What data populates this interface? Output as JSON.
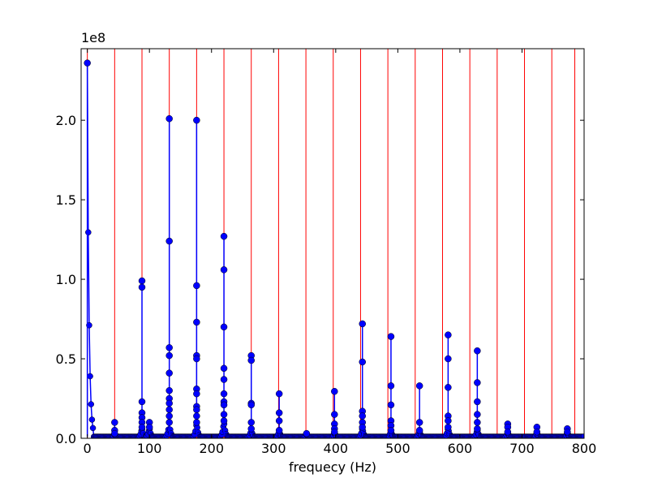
{
  "chart_data": {
    "type": "scatter",
    "title": "",
    "xlabel": "frequecy (Hz)",
    "ylabel": "",
    "y_offset_label": "1e8",
    "xlim": [
      -10,
      800
    ],
    "ylim": [
      0,
      245000000.0
    ],
    "x_ticks": [
      0,
      100,
      200,
      300,
      400,
      500,
      600,
      700,
      800
    ],
    "x_tick_labels": [
      "0",
      "100",
      "200",
      "300",
      "400",
      "500",
      "600",
      "700",
      "800"
    ],
    "y_ticks": [
      0,
      50000000.0,
      100000000.0,
      150000000.0,
      200000000.0
    ],
    "y_tick_labels": [
      "0.0",
      "0.5",
      "1.0",
      "1.5",
      "2.0"
    ],
    "grid": false,
    "colors": {
      "series": "#0000ff",
      "marker_edge": "#000000",
      "harmonic_line": "#ff0000"
    },
    "harmonic_lines_x": [
      0,
      44,
      88,
      132,
      176,
      220,
      264,
      308,
      352,
      396,
      440,
      484,
      528,
      572,
      616,
      660,
      704,
      748,
      785
    ],
    "peaks": [
      {
        "x": 0,
        "values": [
          236000000.0
        ]
      },
      {
        "x": 44,
        "values": [
          10000000.0,
          5000000.0,
          3000000.0
        ]
      },
      {
        "x": 88,
        "values": [
          99000000.0,
          95000000.0,
          23000000.0,
          16000000.0,
          13000000.0,
          10000000.0,
          7000000.0
        ]
      },
      {
        "x": 100,
        "values": [
          10000000.0,
          7000000.0
        ]
      },
      {
        "x": 132,
        "values": [
          201000000.0,
          124000000.0,
          57000000.0,
          52000000.0,
          41000000.0,
          30000000.0,
          25000000.0,
          22000000.0,
          18000000.0,
          14000000.0,
          10000000.0
        ]
      },
      {
        "x": 176,
        "values": [
          200000000.0,
          96000000.0,
          73000000.0,
          52000000.0,
          50000000.0,
          31000000.0,
          28000000.0,
          20000000.0,
          18000000.0,
          14000000.0,
          10000000.0
        ]
      },
      {
        "x": 220,
        "values": [
          127000000.0,
          106000000.0,
          70000000.0,
          44000000.0,
          37000000.0,
          28000000.0,
          23000000.0,
          21000000.0,
          15000000.0,
          11000000.0
        ]
      },
      {
        "x": 264,
        "values": [
          52000000.0,
          49000000.0,
          22000000.0,
          21000000.0,
          10000000.0,
          6000000.0
        ]
      },
      {
        "x": 309,
        "values": [
          28000000.0,
          16000000.0,
          11000000.0,
          5000000.0
        ]
      },
      {
        "x": 353,
        "values": [
          3000000.0
        ]
      },
      {
        "x": 398,
        "values": [
          29500000.0,
          15000000.0,
          9000000.0,
          6000000.0,
          4000000.0
        ]
      },
      {
        "x": 443,
        "values": [
          72000000.0,
          48000000.0,
          17000000.0,
          14000000.0,
          10000000.0,
          7000000.0
        ]
      },
      {
        "x": 489,
        "values": [
          64000000.0,
          33000000.0,
          21000000.0,
          11000000.0,
          8000000.0,
          5000000.0
        ]
      },
      {
        "x": 535,
        "values": [
          33000000.0,
          10000000.0,
          5000000.0
        ]
      },
      {
        "x": 581,
        "values": [
          65000000.0,
          50000000.0,
          32000000.0,
          14000000.0,
          11000000.0,
          7000000.0
        ]
      },
      {
        "x": 628,
        "values": [
          55000000.0,
          35000000.0,
          23000000.0,
          15000000.0,
          10000000.0,
          6000000.0
        ]
      },
      {
        "x": 677,
        "values": [
          9000000.0,
          7000000.0,
          4000000.0
        ]
      },
      {
        "x": 724,
        "values": [
          7000000.0,
          4000000.0
        ]
      },
      {
        "x": 773,
        "values": [
          6000000.0,
          4000000.0
        ]
      }
    ],
    "baseline_value": 1000000.0
  }
}
